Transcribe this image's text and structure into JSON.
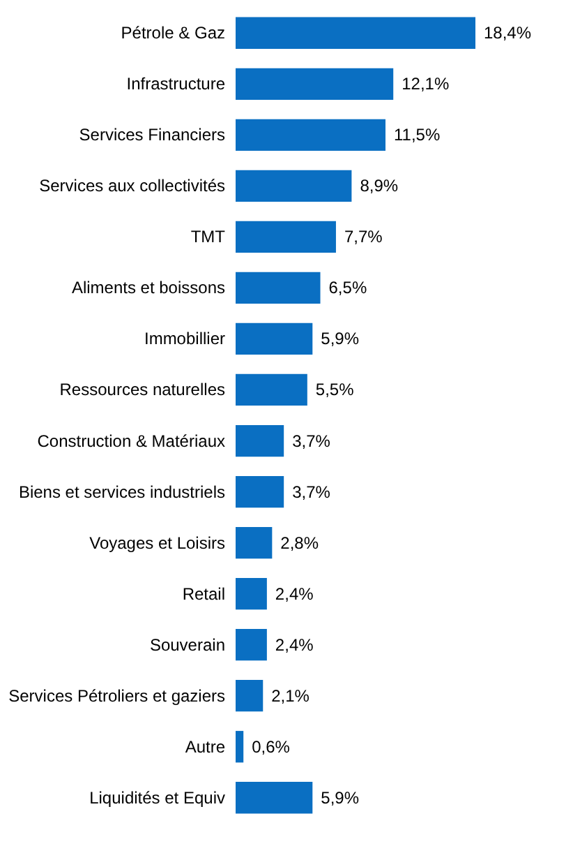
{
  "chart_data": {
    "type": "bar",
    "orientation": "horizontal",
    "color": "#0a6fc2",
    "categories": [
      "Pétrole & Gaz",
      "Infrastructure",
      "Services Financiers",
      "Services aux collectivités",
      "TMT",
      "Aliments et boissons",
      "Immobillier",
      "Ressources naturelles",
      "Construction & Matériaux",
      "Biens et services industriels",
      "Voyages et Loisirs",
      "Retail",
      "Souverain",
      "Services Pétroliers et gaziers",
      "Autre",
      "Liquidités et Equiv"
    ],
    "values": [
      18.4,
      12.1,
      11.5,
      8.9,
      7.7,
      6.5,
      5.9,
      5.5,
      3.7,
      3.7,
      2.8,
      2.4,
      2.4,
      2.1,
      0.6,
      5.9
    ],
    "value_labels": [
      "18,4%",
      "12,1%",
      "11,5%",
      "8,9%",
      "7,7%",
      "6,5%",
      "5,9%",
      "5,5%",
      "3,7%",
      "3,7%",
      "2,8%",
      "2,4%",
      "2,4%",
      "2,1%",
      "0,6%",
      "5,9%"
    ]
  }
}
